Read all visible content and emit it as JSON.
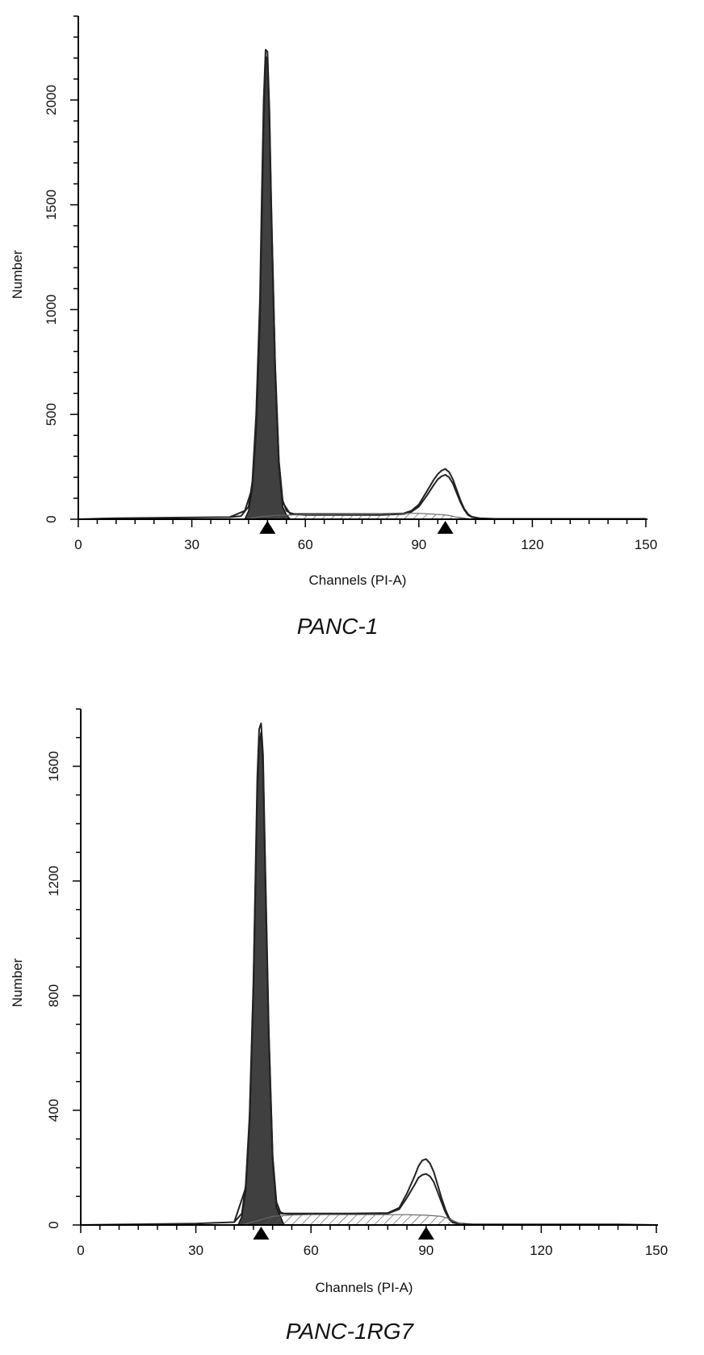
{
  "chart_data": [
    {
      "type": "area",
      "caption": "PANC-1",
      "xlabel": "Channels (PI-A)",
      "ylabel": "Number",
      "xlim": [
        0,
        150
      ],
      "ylim": [
        0,
        2400
      ],
      "x_ticks": [
        0,
        30,
        60,
        90,
        120,
        150
      ],
      "y_ticks": [
        0,
        500,
        1000,
        1500,
        2000
      ],
      "x_minor_step": 5,
      "y_minor_step": 100,
      "markers_x": [
        50,
        97
      ],
      "series": [
        {
          "role": "g1-peak-filled",
          "color": "#404040",
          "x": [
            44,
            45,
            46,
            47,
            48,
            48.5,
            49,
            49.5,
            50,
            50.5,
            51,
            52,
            53,
            54,
            55,
            56
          ],
          "y": [
            0,
            40,
            150,
            450,
            1000,
            1500,
            1950,
            2210,
            2190,
            1900,
            1450,
            700,
            250,
            60,
            20,
            0
          ]
        },
        {
          "role": "total-fit-1",
          "color": "#222222",
          "x": [
            0,
            10,
            40,
            43,
            45,
            46,
            47,
            48,
            48.5,
            49,
            49.5,
            50,
            50.5,
            51,
            52,
            53,
            54,
            55,
            56,
            57,
            60,
            70,
            80,
            86,
            88,
            90,
            92,
            94,
            95,
            96,
            97,
            98,
            99,
            100,
            101,
            102,
            103,
            104,
            106,
            110,
            120,
            150
          ],
          "y": [
            0,
            5,
            10,
            15,
            60,
            180,
            500,
            1050,
            1550,
            2000,
            2240,
            2230,
            1950,
            1500,
            750,
            280,
            90,
            40,
            30,
            25,
            25,
            25,
            25,
            28,
            40,
            70,
            130,
            190,
            215,
            232,
            240,
            225,
            190,
            140,
            90,
            50,
            25,
            12,
            5,
            2,
            2,
            2
          ]
        },
        {
          "role": "total-fit-2",
          "color": "#222222",
          "x": [
            40,
            44,
            46,
            47,
            48,
            49,
            49.5,
            50,
            50.5,
            51,
            52,
            53,
            54,
            56,
            60,
            70,
            80,
            86,
            88,
            90,
            92,
            94,
            95,
            96,
            97,
            98,
            99,
            100,
            101,
            102,
            103,
            104,
            106,
            110
          ],
          "y": [
            10,
            40,
            150,
            420,
            950,
            1900,
            2180,
            2200,
            1920,
            1480,
            740,
            270,
            80,
            25,
            20,
            20,
            20,
            25,
            35,
            60,
            110,
            165,
            190,
            205,
            212,
            200,
            170,
            125,
            80,
            45,
            20,
            10,
            3,
            0
          ]
        },
        {
          "role": "s-phase-hatched",
          "color": "#666666",
          "x": [
            44,
            48,
            52,
            60,
            70,
            80,
            86,
            90,
            94,
            96,
            98,
            100,
            104
          ],
          "y": [
            0,
            12,
            18,
            22,
            24,
            26,
            28,
            28,
            24,
            22,
            18,
            10,
            0
          ]
        }
      ]
    },
    {
      "type": "area",
      "caption": "PANC-1RG7",
      "xlabel": "Channels (PI-A)",
      "ylabel": "Number",
      "xlim": [
        0,
        150
      ],
      "ylim": [
        0,
        1800
      ],
      "x_ticks": [
        0,
        30,
        60,
        90,
        120,
        150
      ],
      "y_ticks": [
        0,
        400,
        800,
        1200,
        1600
      ],
      "x_minor_step": 5,
      "y_minor_step": 100,
      "markers_x": [
        47,
        90
      ],
      "series": [
        {
          "role": "g1-peak-filled",
          "color": "#404040",
          "x": [
            41,
            42,
            43,
            44,
            45,
            45.5,
            46,
            46.5,
            47,
            47.5,
            48,
            49,
            50,
            51,
            52,
            53
          ],
          "y": [
            0,
            30,
            120,
            350,
            800,
            1150,
            1500,
            1680,
            1720,
            1600,
            1250,
            650,
            220,
            60,
            30,
            0
          ]
        },
        {
          "role": "total-fit-1",
          "color": "#222222",
          "x": [
            0,
            30,
            40,
            42,
            43,
            44,
            45,
            45.5,
            46,
            46.5,
            47,
            47.5,
            48,
            49,
            50,
            51,
            52,
            53,
            55,
            60,
            70,
            80,
            83,
            85,
            87,
            88,
            89,
            90,
            91,
            92,
            93,
            94,
            95,
            96,
            97,
            99,
            102,
            110,
            140,
            150
          ],
          "y": [
            0,
            5,
            10,
            40,
            140,
            380,
            850,
            1200,
            1560,
            1730,
            1750,
            1640,
            1300,
            680,
            240,
            80,
            45,
            40,
            40,
            40,
            40,
            42,
            60,
            110,
            170,
            205,
            225,
            230,
            215,
            185,
            140,
            95,
            55,
            25,
            10,
            5,
            2,
            2,
            2,
            0
          ]
        },
        {
          "role": "total-fit-2",
          "color": "#222222",
          "x": [
            40,
            43,
            44,
            45,
            46,
            46.5,
            47,
            47.5,
            48,
            49,
            50,
            51,
            52,
            55,
            60,
            70,
            80,
            83,
            85,
            87,
            88,
            89,
            90,
            91,
            92,
            93,
            94,
            95,
            96,
            97,
            99,
            102
          ],
          "y": [
            10,
            130,
            360,
            820,
            1520,
            1690,
            1710,
            1610,
            1270,
            660,
            230,
            75,
            40,
            38,
            38,
            38,
            40,
            55,
            95,
            140,
            165,
            175,
            178,
            170,
            150,
            115,
            80,
            45,
            20,
            8,
            3,
            0
          ]
        },
        {
          "role": "s-phase-hatched",
          "color": "#666666",
          "x": [
            42,
            46,
            50,
            55,
            60,
            70,
            80,
            85,
            90,
            94,
            96,
            98,
            100
          ],
          "y": [
            0,
            15,
            30,
            35,
            36,
            36,
            36,
            36,
            34,
            30,
            22,
            10,
            0
          ]
        }
      ]
    }
  ]
}
